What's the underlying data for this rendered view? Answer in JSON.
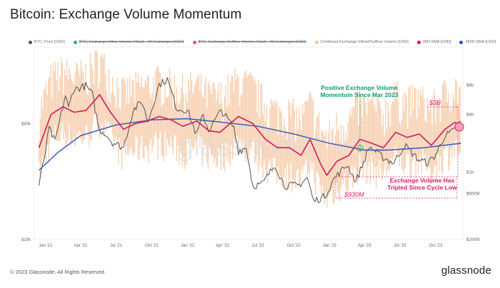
{
  "title": "Bitcoin: Exchange Volume Momentum",
  "footer": {
    "copyright": "© 2023 Glassnode. All Rights Reserved.",
    "brand": "glassnode"
  },
  "watermark": "glassnode",
  "colors": {
    "price": "#505050",
    "inflow": "#22b37a",
    "outflow": "#e05b5b",
    "combined": "#f5c6a0",
    "sma30": "#d01b5a",
    "sma365": "#2a54c8",
    "annotation_green": "#0e9e6e",
    "annotation_pink": "#d81e63"
  },
  "legend": [
    {
      "label": "BTC: Price [USD]",
      "color": "#505050",
      "struck": false
    },
    {
      "label": "BTC: Exchange Inflow Volume (Total) - All Exchanges [USD]",
      "color": "#22b37a",
      "struck": true
    },
    {
      "label": "BTC: Exchange Outflow Volume (Total) - All Exchanges [USD]",
      "color": "#e05b5b",
      "struck": true
    },
    {
      "label": "Combined Exchange Inflow/Outflow Volume [USD]",
      "color": "#f5c6a0",
      "struck": false
    },
    {
      "label": "30D-SMA [USD]",
      "color": "#d01b5a",
      "struck": false
    },
    {
      "label": "365D-SMA [USD]",
      "color": "#2a54c8",
      "struck": false
    }
  ],
  "annotations": {
    "positive": [
      "Positive Exchange Volume",
      "Momentum Since Mar 2023"
    ],
    "tripled": [
      "Exchange Volume Has",
      "Tripled Since Cycle Low"
    ],
    "value_high": "$3B",
    "value_low": "$930M"
  },
  "chart_data": {
    "type": "line",
    "title": "Bitcoin: Exchange Volume Momentum",
    "x_ticks": [
      "Jan '21",
      "Apr '21",
      "Jul '21",
      "Oct '21",
      "Jan '22",
      "Apr '22",
      "Jul '22",
      "Oct '22",
      "Jan '23",
      "Apr '23",
      "Jul '23",
      "Oct '23"
    ],
    "x_range": [
      "2020-12-01",
      "2023-12-10"
    ],
    "y_left": {
      "scale": "log",
      "range": [
        10000,
        100000
      ],
      "ticks": [
        "$10k",
        "$40k"
      ]
    },
    "y_right": {
      "scale": "log",
      "range": [
        200000000,
        20000000000
      ],
      "ticks": [
        "$200M",
        "$600M",
        "$1b",
        "$4b",
        "$8b"
      ]
    },
    "series": [
      {
        "name": "BTC: Price [USD]",
        "axis": "left",
        "points": [
          [
            "2020-12-15",
            19000
          ],
          [
            "2021-01-01",
            29000
          ],
          [
            "2021-01-10",
            38000
          ],
          [
            "2021-01-25",
            32000
          ],
          [
            "2021-02-10",
            45000
          ],
          [
            "2021-02-21",
            56000
          ],
          [
            "2021-03-01",
            48000
          ],
          [
            "2021-03-13",
            60000
          ],
          [
            "2021-04-14",
            63000
          ],
          [
            "2021-05-01",
            57000
          ],
          [
            "2021-05-19",
            37000
          ],
          [
            "2021-06-01",
            36000
          ],
          [
            "2021-06-22",
            32000
          ],
          [
            "2021-07-20",
            30000
          ],
          [
            "2021-08-14",
            47000
          ],
          [
            "2021-09-06",
            52000
          ],
          [
            "2021-09-21",
            41000
          ],
          [
            "2021-10-20",
            64000
          ],
          [
            "2021-11-10",
            68000
          ],
          [
            "2021-12-04",
            48000
          ],
          [
            "2022-01-01",
            47000
          ],
          [
            "2022-01-24",
            35000
          ],
          [
            "2022-02-10",
            44000
          ],
          [
            "2022-02-24",
            37000
          ],
          [
            "2022-03-29",
            47000
          ],
          [
            "2022-04-30",
            38000
          ],
          [
            "2022-05-12",
            29000
          ],
          [
            "2022-06-01",
            30000
          ],
          [
            "2022-06-18",
            19000
          ],
          [
            "2022-07-13",
            19500
          ],
          [
            "2022-08-14",
            24500
          ],
          [
            "2022-09-07",
            19000
          ],
          [
            "2022-10-15",
            19200
          ],
          [
            "2022-11-05",
            21000
          ],
          [
            "2022-11-21",
            15800
          ],
          [
            "2022-12-20",
            16800
          ],
          [
            "2023-01-14",
            20900
          ],
          [
            "2023-02-16",
            24500
          ],
          [
            "2023-03-10",
            20000
          ],
          [
            "2023-04-14",
            30400
          ],
          [
            "2023-05-15",
            27000
          ],
          [
            "2023-06-15",
            25000
          ],
          [
            "2023-07-13",
            31000
          ],
          [
            "2023-08-18",
            26000
          ],
          [
            "2023-09-11",
            25000
          ],
          [
            "2023-10-01",
            27500
          ],
          [
            "2023-10-24",
            34500
          ],
          [
            "2023-11-15",
            36500
          ],
          [
            "2023-12-05",
            41000
          ]
        ]
      },
      {
        "name": "30D-SMA [USD]",
        "axis": "right",
        "points": [
          [
            "2020-12-15",
            1800000000
          ],
          [
            "2021-01-15",
            4000000000
          ],
          [
            "2021-02-15",
            4800000000
          ],
          [
            "2021-03-15",
            4200000000
          ],
          [
            "2021-04-15",
            4400000000
          ],
          [
            "2021-05-20",
            6400000000
          ],
          [
            "2021-06-15",
            4300000000
          ],
          [
            "2021-07-20",
            2800000000
          ],
          [
            "2021-08-20",
            3200000000
          ],
          [
            "2021-09-20",
            3400000000
          ],
          [
            "2021-10-20",
            3800000000
          ],
          [
            "2021-11-20",
            3500000000
          ],
          [
            "2021-12-20",
            3000000000
          ],
          [
            "2022-01-25",
            3400000000
          ],
          [
            "2022-02-25",
            2700000000
          ],
          [
            "2022-03-25",
            2600000000
          ],
          [
            "2022-05-12",
            3800000000
          ],
          [
            "2022-06-18",
            3200000000
          ],
          [
            "2022-07-20",
            2200000000
          ],
          [
            "2022-08-20",
            1800000000
          ],
          [
            "2022-09-20",
            1800000000
          ],
          [
            "2022-10-20",
            1500000000
          ],
          [
            "2022-11-12",
            2200000000
          ],
          [
            "2022-12-10",
            1200000000
          ],
          [
            "2022-12-25",
            930000000
          ],
          [
            "2023-01-20",
            1300000000
          ],
          [
            "2023-02-20",
            1500000000
          ],
          [
            "2023-03-20",
            2200000000
          ],
          [
            "2023-04-20",
            2000000000
          ],
          [
            "2023-05-20",
            1800000000
          ],
          [
            "2023-06-20",
            2600000000
          ],
          [
            "2023-07-20",
            2300000000
          ],
          [
            "2023-08-20",
            2500000000
          ],
          [
            "2023-09-20",
            1900000000
          ],
          [
            "2023-10-25",
            2800000000
          ],
          [
            "2023-11-20",
            3300000000
          ],
          [
            "2023-12-05",
            3000000000
          ]
        ]
      },
      {
        "name": "365D-SMA [USD]",
        "axis": "right",
        "points": [
          [
            "2020-12-15",
            1050000000
          ],
          [
            "2021-02-01",
            1600000000
          ],
          [
            "2021-04-01",
            2400000000
          ],
          [
            "2021-07-01",
            3100000000
          ],
          [
            "2021-10-01",
            3500000000
          ],
          [
            "2022-01-01",
            3600000000
          ],
          [
            "2022-04-01",
            3300000000
          ],
          [
            "2022-07-01",
            3000000000
          ],
          [
            "2022-10-01",
            2500000000
          ],
          [
            "2023-01-01",
            2000000000
          ],
          [
            "2023-04-01",
            1700000000
          ],
          [
            "2023-06-01",
            1700000000
          ],
          [
            "2023-09-01",
            1800000000
          ],
          [
            "2023-12-05",
            2000000000
          ]
        ]
      },
      {
        "name": "Combined Exchange Inflow/Outflow Volume [USD]",
        "axis": "right",
        "range": [
          700000000,
          12000000000
        ]
      }
    ]
  }
}
